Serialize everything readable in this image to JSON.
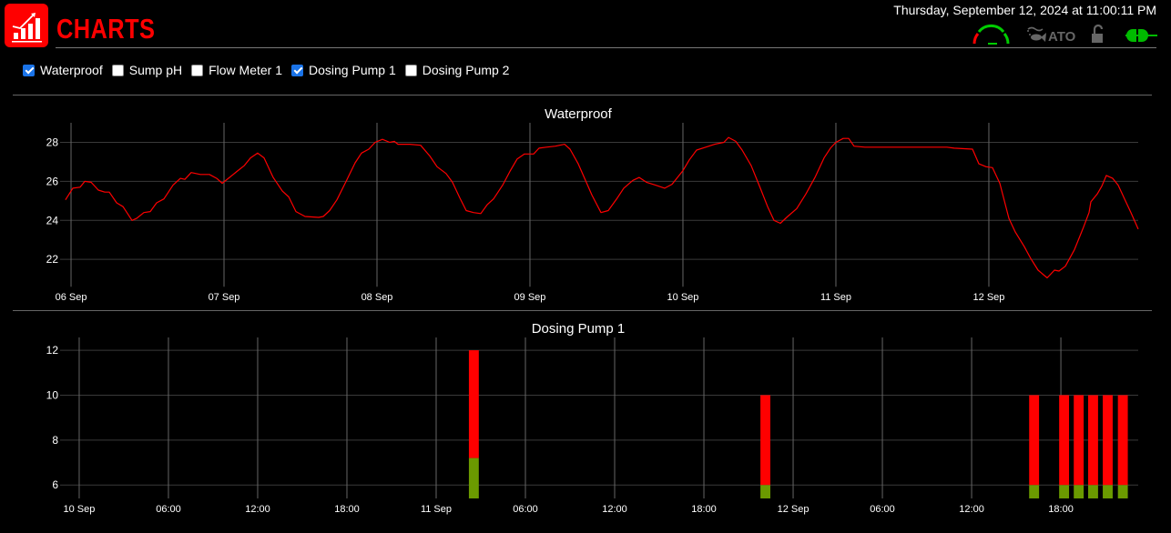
{
  "header": {
    "title": "CHARTS",
    "datetime": "Thursday, September 12, 2024 at 11:00:11 PM",
    "status_icons": [
      "gauge-icon",
      "fish-feed-icon",
      "ato-icon",
      "unlocked-padlock-icon",
      "power-plug-icon"
    ],
    "ato_label": "ATO",
    "colors": {
      "brand": "#ff0000",
      "ok": "#00cc00",
      "inactive": "#666666"
    }
  },
  "filters": [
    {
      "label": "Waterproof",
      "checked": true
    },
    {
      "label": "Sump pH",
      "checked": false
    },
    {
      "label": "Flow Meter 1",
      "checked": false
    },
    {
      "label": "Dosing Pump 1",
      "checked": true
    },
    {
      "label": "Dosing Pump 2",
      "checked": false
    }
  ],
  "chart_data": [
    {
      "type": "line",
      "title": "Waterproof",
      "color": "#ff0000",
      "grid": true,
      "xlim": [
        "2024-09-05T22:17",
        "2024-09-12T23:26"
      ],
      "ylim": [
        20.6,
        29.0
      ],
      "xticks": [
        {
          "t": "2024-09-06T00:00",
          "label": "06 Sep"
        },
        {
          "t": "2024-09-07T00:00",
          "label": "07 Sep"
        },
        {
          "t": "2024-09-08T00:00",
          "label": "08 Sep"
        },
        {
          "t": "2024-09-09T00:00",
          "label": "09 Sep"
        },
        {
          "t": "2024-09-10T00:00",
          "label": "10 Sep"
        },
        {
          "t": "2024-09-11T00:00",
          "label": "11 Sep"
        },
        {
          "t": "2024-09-12T00:00",
          "label": "12 Sep"
        }
      ],
      "yticks": [
        22,
        24,
        26,
        28
      ],
      "points": [
        [
          "2024-09-05T23:08",
          25.05
        ],
        [
          "2024-09-06T00:17",
          25.65
        ],
        [
          "2024-09-06T01:26",
          25.7
        ],
        [
          "2024-09-06T02:09",
          26.0
        ],
        [
          "2024-09-06T03:09",
          25.95
        ],
        [
          "2024-09-06T04:17",
          25.55
        ],
        [
          "2024-09-06T05:17",
          25.45
        ],
        [
          "2024-09-06T06:00",
          25.45
        ],
        [
          "2024-09-06T07:09",
          24.9
        ],
        [
          "2024-09-06T08:09",
          24.7
        ],
        [
          "2024-09-06T09:34",
          24.0
        ],
        [
          "2024-09-06T10:17",
          24.1
        ],
        [
          "2024-09-06T11:26",
          24.4
        ],
        [
          "2024-09-06T12:26",
          24.45
        ],
        [
          "2024-09-06T13:26",
          24.9
        ],
        [
          "2024-09-06T14:34",
          25.1
        ],
        [
          "2024-09-06T16:00",
          25.8
        ],
        [
          "2024-09-06T17:09",
          26.15
        ],
        [
          "2024-09-06T17:51",
          26.1
        ],
        [
          "2024-09-06T18:51",
          26.45
        ],
        [
          "2024-09-06T20:17",
          26.35
        ],
        [
          "2024-09-06T21:43",
          26.35
        ],
        [
          "2024-09-06T22:51",
          26.15
        ],
        [
          "2024-09-06T23:43",
          25.9
        ],
        [
          "2024-09-07T00:51",
          26.2
        ],
        [
          "2024-09-07T02:00",
          26.5
        ],
        [
          "2024-09-07T03:09",
          26.8
        ],
        [
          "2024-09-07T04:09",
          27.2
        ],
        [
          "2024-09-07T05:17",
          27.45
        ],
        [
          "2024-09-07T06:17",
          27.2
        ],
        [
          "2024-09-07T07:43",
          26.2
        ],
        [
          "2024-09-07T09:09",
          25.5
        ],
        [
          "2024-09-07T10:09",
          25.2
        ],
        [
          "2024-09-07T11:17",
          24.45
        ],
        [
          "2024-09-07T12:43",
          24.2
        ],
        [
          "2024-09-07T14:51",
          24.15
        ],
        [
          "2024-09-07T15:34",
          24.2
        ],
        [
          "2024-09-07T16:34",
          24.5
        ],
        [
          "2024-09-07T17:43",
          25.05
        ],
        [
          "2024-09-07T19:09",
          26.0
        ],
        [
          "2024-09-07T20:34",
          26.95
        ],
        [
          "2024-09-07T21:34",
          27.45
        ],
        [
          "2024-09-07T22:43",
          27.65
        ],
        [
          "2024-09-07T23:43",
          28.0
        ],
        [
          "2024-09-08T00:51",
          28.15
        ],
        [
          "2024-09-08T02:00",
          28.0
        ],
        [
          "2024-09-08T02:43",
          28.05
        ],
        [
          "2024-09-08T03:17",
          27.9
        ],
        [
          "2024-09-08T05:09",
          27.9
        ],
        [
          "2024-09-08T06:51",
          27.85
        ],
        [
          "2024-09-08T08:17",
          27.3
        ],
        [
          "2024-09-08T09:26",
          26.75
        ],
        [
          "2024-09-08T10:51",
          26.4
        ],
        [
          "2024-09-08T11:51",
          25.95
        ],
        [
          "2024-09-08T13:00",
          25.15
        ],
        [
          "2024-09-08T14:00",
          24.5
        ],
        [
          "2024-09-08T15:09",
          24.4
        ],
        [
          "2024-09-08T16:17",
          24.35
        ],
        [
          "2024-09-08T17:17",
          24.8
        ],
        [
          "2024-09-08T18:17",
          25.1
        ],
        [
          "2024-09-08T19:43",
          25.8
        ],
        [
          "2024-09-08T20:51",
          26.5
        ],
        [
          "2024-09-08T22:00",
          27.15
        ],
        [
          "2024-09-08T23:09",
          27.4
        ],
        [
          "2024-09-09T00:34",
          27.4
        ],
        [
          "2024-09-09T01:26",
          27.7
        ],
        [
          "2024-09-09T02:34",
          27.75
        ],
        [
          "2024-09-09T04:00",
          27.8
        ],
        [
          "2024-09-09T05:26",
          27.9
        ],
        [
          "2024-09-09T06:17",
          27.65
        ],
        [
          "2024-09-09T07:34",
          26.9
        ],
        [
          "2024-09-09T08:51",
          25.95
        ],
        [
          "2024-09-09T09:43",
          25.3
        ],
        [
          "2024-09-09T11:09",
          24.4
        ],
        [
          "2024-09-09T12:17",
          24.5
        ],
        [
          "2024-09-09T13:43",
          25.15
        ],
        [
          "2024-09-09T14:43",
          25.65
        ],
        [
          "2024-09-09T16:09",
          26.05
        ],
        [
          "2024-09-09T17:09",
          26.2
        ],
        [
          "2024-09-09T18:17",
          25.95
        ],
        [
          "2024-09-09T19:43",
          25.8
        ],
        [
          "2024-09-09T21:09",
          25.65
        ],
        [
          "2024-09-09T22:17",
          25.85
        ],
        [
          "2024-09-10T00:00",
          26.55
        ],
        [
          "2024-09-10T01:00",
          27.1
        ],
        [
          "2024-09-10T02:09",
          27.6
        ],
        [
          "2024-09-10T03:34",
          27.75
        ],
        [
          "2024-09-10T05:00",
          27.9
        ],
        [
          "2024-09-10T06:26",
          28.0
        ],
        [
          "2024-09-10T07:09",
          28.25
        ],
        [
          "2024-09-10T08:17",
          28.05
        ],
        [
          "2024-09-10T09:17",
          27.6
        ],
        [
          "2024-09-10T10:43",
          26.8
        ],
        [
          "2024-09-10T12:09",
          25.65
        ],
        [
          "2024-09-10T13:17",
          24.7
        ],
        [
          "2024-09-10T14:17",
          24.0
        ],
        [
          "2024-09-10T15:17",
          23.85
        ],
        [
          "2024-09-10T16:26",
          24.2
        ],
        [
          "2024-09-10T17:51",
          24.6
        ],
        [
          "2024-09-10T19:17",
          25.35
        ],
        [
          "2024-09-10T20:43",
          26.2
        ],
        [
          "2024-09-10T22:09",
          27.2
        ],
        [
          "2024-09-10T23:09",
          27.7
        ],
        [
          "2024-09-11T00:00",
          28.0
        ],
        [
          "2024-09-11T01:09",
          28.2
        ],
        [
          "2024-09-11T02:00",
          28.2
        ],
        [
          "2024-09-11T02:51",
          27.8
        ],
        [
          "2024-09-11T04:34",
          27.75
        ],
        [
          "2024-09-11T11:43",
          27.75
        ],
        [
          "2024-09-11T17:26",
          27.75
        ],
        [
          "2024-09-11T18:34",
          27.7
        ],
        [
          "2024-09-11T21:26",
          27.65
        ],
        [
          "2024-09-11T22:26",
          26.9
        ],
        [
          "2024-09-11T23:34",
          26.75
        ],
        [
          "2024-09-12T00:34",
          26.7
        ],
        [
          "2024-09-12T01:43",
          25.9
        ],
        [
          "2024-09-12T03:09",
          24.1
        ],
        [
          "2024-09-12T04:09",
          23.4
        ],
        [
          "2024-09-12T05:34",
          22.65
        ],
        [
          "2024-09-12T06:34",
          22.05
        ],
        [
          "2024-09-12T07:43",
          21.45
        ],
        [
          "2024-09-12T09:09",
          21.05
        ],
        [
          "2024-09-12T10:17",
          21.45
        ],
        [
          "2024-09-12T11:00",
          21.4
        ],
        [
          "2024-09-12T12:00",
          21.65
        ],
        [
          "2024-09-12T13:26",
          22.5
        ],
        [
          "2024-09-12T14:51",
          23.65
        ],
        [
          "2024-09-12T15:43",
          24.4
        ],
        [
          "2024-09-12T16:00",
          24.95
        ],
        [
          "2024-09-12T17:00",
          25.35
        ],
        [
          "2024-09-12T17:43",
          25.75
        ],
        [
          "2024-09-12T18:26",
          26.3
        ],
        [
          "2024-09-12T19:26",
          26.15
        ],
        [
          "2024-09-12T20:17",
          25.8
        ],
        [
          "2024-09-12T21:17",
          25.1
        ],
        [
          "2024-09-12T22:17",
          24.4
        ],
        [
          "2024-09-12T23:26",
          23.55
        ]
      ]
    },
    {
      "type": "bar",
      "title": "Dosing Pump 1",
      "grid": true,
      "stacked": true,
      "colors": {
        "lower": "#6b9a00",
        "upper": "#ff0000"
      },
      "xlim": [
        "2024-09-09T22:43",
        "2024-09-12T23:12"
      ],
      "ylim": [
        5.4,
        12.57
      ],
      "bar_duration_minutes": 40,
      "xticks": [
        {
          "t": "2024-09-10T00:00",
          "label": "10 Sep"
        },
        {
          "t": "2024-09-10T06:00",
          "label": "06:00"
        },
        {
          "t": "2024-09-10T12:00",
          "label": "12:00"
        },
        {
          "t": "2024-09-10T18:00",
          "label": "18:00"
        },
        {
          "t": "2024-09-11T00:00",
          "label": "11 Sep"
        },
        {
          "t": "2024-09-11T06:00",
          "label": "06:00"
        },
        {
          "t": "2024-09-11T12:00",
          "label": "12:00"
        },
        {
          "t": "2024-09-11T18:00",
          "label": "18:00"
        },
        {
          "t": "2024-09-12T00:00",
          "label": "12 Sep"
        },
        {
          "t": "2024-09-12T06:00",
          "label": "06:00"
        },
        {
          "t": "2024-09-12T12:00",
          "label": "12:00"
        },
        {
          "t": "2024-09-12T18:00",
          "label": "18:00"
        }
      ],
      "yticks": [
        6,
        8,
        10,
        12
      ],
      "bars": [
        {
          "t": "2024-09-11T02:32",
          "lower_top": 7.2,
          "upper_top": 12
        },
        {
          "t": "2024-09-11T22:08",
          "lower_top": 6,
          "upper_top": 10
        },
        {
          "t": "2024-09-12T16:12",
          "lower_top": 6,
          "upper_top": 10
        },
        {
          "t": "2024-09-12T18:13",
          "lower_top": 6,
          "upper_top": 10
        },
        {
          "t": "2024-09-12T19:12",
          "lower_top": 6,
          "upper_top": 10
        },
        {
          "t": "2024-09-12T20:10",
          "lower_top": 6,
          "upper_top": 10
        },
        {
          "t": "2024-09-12T21:09",
          "lower_top": 6,
          "upper_top": 10
        },
        {
          "t": "2024-09-12T22:10",
          "lower_top": 6,
          "upper_top": 10
        }
      ]
    }
  ]
}
